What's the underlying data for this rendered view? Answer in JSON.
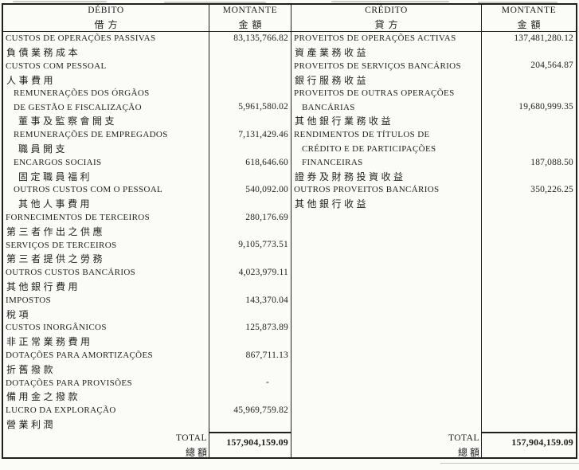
{
  "document": {
    "colors": {
      "ink": "#1f1f1f",
      "paper": "#fbfbf8"
    },
    "header": {
      "debit_title": "DÉBITO",
      "debit_title_cn": "借方",
      "debit_amount_title": "MONTANTE",
      "debit_amount_title_cn": "金額",
      "credit_title": "CRÉDITO",
      "credit_title_cn": "貸方",
      "credit_amount_title": "MONTANTE",
      "credit_amount_title_cn": "金額"
    },
    "lines": [
      {
        "d": "CUSTOS DE OPERAÇÕES PASSIVAS",
        "dk": "pt",
        "dv": "83,135,766.82",
        "c": "PROVEITOS DE OPERAÇÕES ACTIVAS",
        "ck": "pt",
        "cv": "137,481,280.12"
      },
      {
        "d": "負債業務成本",
        "dk": "cn",
        "dv": "",
        "c": "資產業務收益",
        "ck": "cn",
        "cv": ""
      },
      {
        "d": "CUSTOS COM PESSOAL",
        "dk": "pt",
        "dv": "",
        "c": "PROVEITOS DE SERVIÇOS BANCÁRIOS",
        "ck": "pt",
        "cv": "204,564.87"
      },
      {
        "d": "人事費用",
        "dk": "cn",
        "dv": "",
        "c": "銀行服務收益",
        "ck": "cn",
        "cv": ""
      },
      {
        "d": "REMUNERAÇÕES DOS ÓRGÃOS",
        "dk": "pt-i",
        "dv": "",
        "c": "PROVEITOS DE OUTRAS OPERAÇÕES",
        "ck": "pt",
        "cv": ""
      },
      {
        "d": "DE GESTÃO E FISCALIZAÇÃO",
        "dk": "pt-i",
        "dv": "5,961,580.02",
        "c": "BANCÁRIAS",
        "ck": "pt-i",
        "cv": "19,680,999.35"
      },
      {
        "d": "董事及監察會開支",
        "dk": "cn-i",
        "dv": "",
        "c": "其他銀行業務收益",
        "ck": "cn",
        "cv": ""
      },
      {
        "d": "REMUNERAÇÕES DE EMPREGADOS",
        "dk": "pt-i",
        "dv": "7,131,429.46",
        "c": "RENDIMENTOS DE TÍTULOS DE",
        "ck": "pt",
        "cv": ""
      },
      {
        "d": "職員開支",
        "dk": "cn-i",
        "dv": "",
        "c": "CRÉDITO E DE PARTICIPAÇÕES",
        "ck": "pt-i",
        "cv": ""
      },
      {
        "d": "ENCARGOS SOCIAIS",
        "dk": "pt-i",
        "dv": "618,646.60",
        "c": "FINANCEIRAS",
        "ck": "pt-i",
        "cv": "187,088.50"
      },
      {
        "d": "固定職員福利",
        "dk": "cn-i",
        "dv": "",
        "c": "證券及財務投資收益",
        "ck": "cn",
        "cv": ""
      },
      {
        "d": "OUTROS CUSTOS COM O PESSOAL",
        "dk": "pt-i",
        "dv": "540,092.00",
        "c": "OUTROS PROVEITOS BANCÁRIOS",
        "ck": "pt",
        "cv": "350,226.25"
      },
      {
        "d": "其他人事費用",
        "dk": "cn-i",
        "dv": "",
        "c": "其他銀行收益",
        "ck": "cn",
        "cv": ""
      },
      {
        "d": "FORNECIMENTOS DE TERCEIROS",
        "dk": "pt",
        "dv": "280,176.69",
        "c": "",
        "ck": "pt",
        "cv": ""
      },
      {
        "d": "第三者作出之供應",
        "dk": "cn",
        "dv": "",
        "c": "",
        "ck": "pt",
        "cv": ""
      },
      {
        "d": "SERVIÇOS DE TERCEIROS",
        "dk": "pt",
        "dv": "9,105,773.51",
        "c": "",
        "ck": "pt",
        "cv": ""
      },
      {
        "d": "第三者提供之勞務",
        "dk": "cn",
        "dv": "",
        "c": "",
        "ck": "pt",
        "cv": ""
      },
      {
        "d": "OUTROS CUSTOS BANCÁRIOS",
        "dk": "pt",
        "dv": "4,023,979.11",
        "c": "",
        "ck": "pt",
        "cv": ""
      },
      {
        "d": "其他銀行費用",
        "dk": "cn",
        "dv": "",
        "c": "",
        "ck": "pt",
        "cv": ""
      },
      {
        "d": "IMPOSTOS",
        "dk": "pt",
        "dv": "143,370.04",
        "c": "",
        "ck": "pt",
        "cv": ""
      },
      {
        "d": "稅項",
        "dk": "cn",
        "dv": "",
        "c": "",
        "ck": "pt",
        "cv": ""
      },
      {
        "d": "CUSTOS INORGÂNICOS",
        "dk": "pt",
        "dv": "125,873.89",
        "c": "",
        "ck": "pt",
        "cv": ""
      },
      {
        "d": "非正常業務費用",
        "dk": "cn",
        "dv": "",
        "c": "",
        "ck": "pt",
        "cv": ""
      },
      {
        "d": "DOTAÇÕES PARA AMORTIZAÇÕES",
        "dk": "pt",
        "dv": "867,711.13",
        "c": "",
        "ck": "pt",
        "cv": ""
      },
      {
        "d": "折舊撥款",
        "dk": "cn",
        "dv": "",
        "c": "",
        "ck": "pt",
        "cv": ""
      },
      {
        "d": "DOTAÇÕES PARA PROVISÕES",
        "dk": "pt",
        "dv": "-",
        "c": "",
        "ck": "pt",
        "cv": ""
      },
      {
        "d": "備用金之撥款",
        "dk": "cn",
        "dv": "",
        "c": "",
        "ck": "pt",
        "cv": ""
      },
      {
        "d": "LUCRO DA EXPLORAÇÃO",
        "dk": "pt",
        "dv": "45,969,759.82",
        "c": "",
        "ck": "pt",
        "cv": ""
      },
      {
        "d": "營業利潤",
        "dk": "cn",
        "dv": "",
        "c": "",
        "ck": "pt",
        "cv": ""
      }
    ],
    "total": {
      "label": "TOTAL",
      "label_cn": "總額",
      "debit_total": "157,904,159.09",
      "credit_total": "157,904,159.09"
    }
  }
}
